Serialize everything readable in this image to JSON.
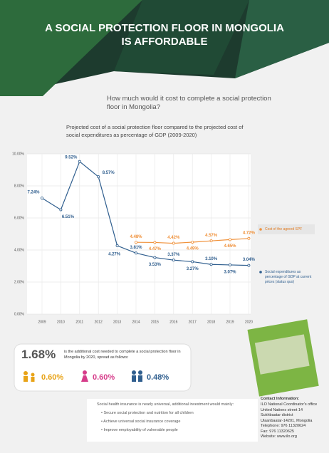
{
  "header": {
    "title_lines": [
      "A SOCIAL PROTECTION FLOOR IN MONGOLIA",
      "IS AFFORDABLE"
    ]
  },
  "question_lines": [
    "How much would it cost to complete a social protection",
    "floor in Mongolia?"
  ],
  "chart_data": {
    "type": "line",
    "title_lines": [
      "Projected cost of a social protection floor compared to the projected cost of",
      "social expenditures as percentage of GDP (2009-2020)"
    ],
    "categories": [
      "2009",
      "2010",
      "2011",
      "2012",
      "2013",
      "2014",
      "2015",
      "2016",
      "2017",
      "2018",
      "2019",
      "2020"
    ],
    "ylim": [
      0,
      10
    ],
    "yticks": [
      {
        "value": 0,
        "label": "0.00%"
      },
      {
        "value": 2,
        "label": "2.00%"
      },
      {
        "value": 4,
        "label": "4.00%"
      },
      {
        "value": 6,
        "label": "6.00%"
      },
      {
        "value": 8,
        "label": "8.00%"
      },
      {
        "value": 10,
        "label": "10.00%"
      }
    ],
    "grid": true,
    "series": [
      {
        "name": "Cost of the agreed SPF",
        "color": "#f0913a",
        "values": [
          null,
          null,
          null,
          null,
          null,
          4.48,
          4.47,
          4.42,
          4.49,
          4.57,
          4.65,
          4.72
        ],
        "value_labels": [
          null,
          null,
          null,
          null,
          null,
          "4.48%",
          "4.47%",
          "4.42%",
          "4.49%",
          "4.57%",
          "4.65%",
          "4.72%"
        ]
      },
      {
        "name": "Social expenditures as percentage of GDP at current prices (status quo)",
        "color": "#2f5e8e",
        "values": [
          7.24,
          6.51,
          9.52,
          8.57,
          4.27,
          3.81,
          3.53,
          3.37,
          3.27,
          3.1,
          3.07,
          3.04
        ],
        "value_labels": [
          "7.24%",
          "6.51%",
          "9.52%",
          "8.57%",
          "4.27%",
          "3.81%",
          "3.53%",
          "3.37%",
          "3.27%",
          "3.10%",
          "3.07%",
          "3.04%"
        ]
      }
    ]
  },
  "additional_cost": {
    "value": "1.68%",
    "text": "is the additional cost needed to complete a social protection floor in Mongolia by 2020, spread as follows:",
    "items": [
      "0.60%",
      "0.60%",
      "0.48%"
    ]
  },
  "measures": {
    "intro": "Social health insurance is nearly universal, additional investment would mainly:",
    "bullets": [
      "Secure social protection and nutrition for all children",
      "Achieve universal social insurance coverage",
      "Improve employability of vulnerable people"
    ]
  },
  "contact": {
    "title": "Contact Information:",
    "lines": [
      "ILO National Coordinator's office",
      "United Nations street 14",
      "Sukhbaatar district",
      "Ulaanbaatar-14201, Mongolia",
      "Telephone: 976 11320624",
      "Fax: 976 11320625",
      "Website: www.ilo.org"
    ]
  }
}
